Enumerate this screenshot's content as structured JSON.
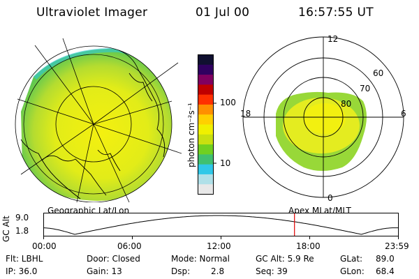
{
  "header": {
    "instrument": "Ultraviolet Imager",
    "date": "01 Jul 00",
    "time": "16:57:55 UT"
  },
  "colorbar": {
    "label": "photon cm⁻²s⁻¹",
    "ticks": [
      "100",
      "10"
    ],
    "colors": [
      "#e8e8e8",
      "#b0e0e8",
      "#30c8e8",
      "#40c070",
      "#70d020",
      "#c8e010",
      "#f0f000",
      "#ffd000",
      "#ff9000",
      "#ff3000",
      "#c00000",
      "#800060",
      "#300060",
      "#101030"
    ]
  },
  "polar_plot": {
    "labels": {
      "top": "12",
      "bottom": "0",
      "left": "18",
      "right": "6",
      "ring_60": "60",
      "ring_70": "70",
      "ring_80": "80"
    }
  },
  "map_labels": {
    "left": "Geographic Lat/Lon",
    "right": "Apex MLat/MLT"
  },
  "altitude_plot": {
    "axis_label": "GC Alt",
    "ytick_top": "9.0",
    "ytick_bottom": "1.8",
    "xticks": [
      "00:00",
      "06:00",
      "12:00",
      "18:00",
      "23:59"
    ],
    "marker_time_hours": 16.97
  },
  "status": {
    "flt": "Flt: LBHL",
    "ip": "IP: 36.0",
    "door": "Door: Closed",
    "gain": "Gain: 13",
    "mode": "Mode: Normal",
    "dsp_label": "Dsp:",
    "dsp_value": "2.8",
    "gcalt": "GC Alt: 5.9 Re",
    "seq": "Seq: 39",
    "glat_label": "GLat:",
    "glat_value": "89.0",
    "glon_label": "GLon:",
    "glon_value": "68.4"
  }
}
